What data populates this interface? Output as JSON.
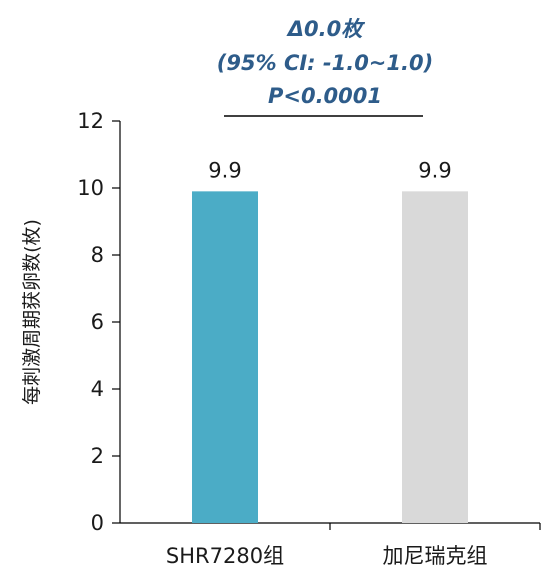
{
  "chart_data": {
    "type": "bar",
    "categories": [
      "SHR7280组",
      "加尼瑞克组"
    ],
    "values": [
      9.9,
      9.9
    ],
    "data_labels": [
      "9.9",
      "9.9"
    ],
    "ylabel": "每刺激周期获卵数(枚)",
    "xlabel": "",
    "ylim": [
      0,
      12
    ],
    "yticks": [
      0,
      2,
      4,
      6,
      8,
      10,
      12
    ],
    "grid": false,
    "legend": "none",
    "bar_colors": [
      "#4bacc6",
      "#d9d9d9"
    ],
    "annotation": {
      "lines": [
        "Δ0.0枚",
        "(95% CI: -1.0~1.0)",
        "P<0.0001"
      ],
      "color": "#2e5c8a",
      "bracket_color": "#000000"
    }
  }
}
